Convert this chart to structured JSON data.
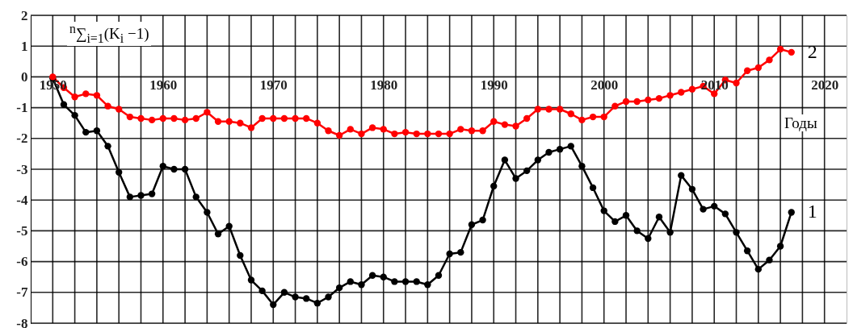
{
  "chart_data": {
    "type": "line",
    "ylabel": "$^{n}$∑$_{i=1}$(K$_{i}$ −1)",
    "xlabel": "Годы",
    "xlim": [
      1948,
      2022
    ],
    "ylim": [
      -8,
      2
    ],
    "xticks": [
      1950,
      {
        "value": 1952,
        "label": null
      },
      {
        "value": 1954,
        "label": null
      },
      {
        "value": 1956,
        "label": null
      },
      {
        "value": 1958,
        "label": null
      },
      1960,
      {
        "value": 1962,
        "label": null
      },
      {
        "value": 1964,
        "label": null
      },
      {
        "value": 1966,
        "label": null
      },
      {
        "value": 1968,
        "label": null
      },
      1970,
      {
        "value": 1972,
        "label": null
      },
      {
        "value": 1974,
        "label": null
      },
      {
        "value": 1976,
        "label": null
      },
      {
        "value": 1978,
        "label": null
      },
      1980,
      {
        "value": 1982,
        "label": null
      },
      {
        "value": 1984,
        "label": null
      },
      {
        "value": 1986,
        "label": null
      },
      {
        "value": 1988,
        "label": null
      },
      1990,
      {
        "value": 1992,
        "label": null
      },
      {
        "value": 1994,
        "label": null
      },
      {
        "value": 1996,
        "label": null
      },
      {
        "value": 1998,
        "label": null
      },
      2000,
      {
        "value": 2002,
        "label": null
      },
      {
        "value": 2004,
        "label": null
      },
      {
        "value": 2006,
        "label": null
      },
      {
        "value": 2008,
        "label": null
      },
      2010,
      {
        "value": 2012,
        "label": null
      },
      {
        "value": 2014,
        "label": null
      },
      {
        "value": 2016,
        "label": null
      },
      {
        "value": 2018,
        "label": null
      },
      2020
    ],
    "yticks": [
      -8,
      -7,
      -6,
      -5,
      -4,
      -3,
      -2,
      -1,
      0,
      1,
      2
    ],
    "grid": true,
    "marker": "circle",
    "line_style": "solid",
    "x": [
      1950,
      1951,
      1952,
      1953,
      1954,
      1955,
      1956,
      1957,
      1958,
      1959,
      1960,
      1961,
      1962,
      1963,
      1964,
      1965,
      1966,
      1967,
      1968,
      1969,
      1970,
      1971,
      1972,
      1973,
      1974,
      1975,
      1976,
      1977,
      1978,
      1979,
      1980,
      1981,
      1982,
      1983,
      1984,
      1985,
      1986,
      1987,
      1988,
      1989,
      1990,
      1991,
      1992,
      1993,
      1994,
      1995,
      1996,
      1997,
      1998,
      1999,
      2000,
      2001,
      2002,
      2003,
      2004,
      2005,
      2006,
      2007,
      2008,
      2009,
      2010,
      2011,
      2012,
      2013,
      2014,
      2015,
      2016,
      2017
    ],
    "series": [
      {
        "name": "1",
        "color": "#000000",
        "values": [
          -0.05,
          -0.9,
          -1.25,
          -1.8,
          -1.75,
          -2.25,
          -3.1,
          -3.9,
          -3.85,
          -3.8,
          -2.9,
          -3.0,
          -3.0,
          -3.9,
          -4.4,
          -5.1,
          -4.85,
          -5.8,
          -6.6,
          -6.95,
          -7.4,
          -7.0,
          -7.15,
          -7.2,
          -7.35,
          -7.15,
          -6.85,
          -6.65,
          -6.75,
          -6.45,
          -6.5,
          -6.65,
          -6.65,
          -6.65,
          -6.75,
          -6.45,
          -5.75,
          -5.7,
          -4.8,
          -4.65,
          -3.55,
          -2.7,
          -3.3,
          -3.05,
          -2.7,
          -2.45,
          -2.35,
          -2.25,
          -2.9,
          -3.6,
          -4.35,
          -4.7,
          -4.5,
          -5.0,
          -5.25,
          -4.55,
          -5.05,
          -3.2,
          -3.65,
          -4.3,
          -4.2,
          -4.45,
          -5.05,
          -5.65,
          -6.25,
          -5.95,
          -5.5,
          -4.4
        ]
      },
      {
        "name": "2",
        "color": "#ff0000",
        "values": [
          0.0,
          -0.35,
          -0.65,
          -0.55,
          -0.6,
          -0.95,
          -1.05,
          -1.3,
          -1.35,
          -1.4,
          -1.35,
          -1.35,
          -1.4,
          -1.35,
          -1.15,
          -1.45,
          -1.45,
          -1.5,
          -1.65,
          -1.35,
          -1.35,
          -1.35,
          -1.35,
          -1.35,
          -1.5,
          -1.75,
          -1.9,
          -1.7,
          -1.85,
          -1.65,
          -1.7,
          -1.85,
          -1.8,
          -1.85,
          -1.85,
          -1.85,
          -1.85,
          -1.7,
          -1.75,
          -1.75,
          -1.45,
          -1.55,
          -1.6,
          -1.35,
          -1.05,
          -1.05,
          -1.05,
          -1.2,
          -1.4,
          -1.3,
          -1.3,
          -0.95,
          -0.8,
          -0.8,
          -0.75,
          -0.7,
          -0.6,
          -0.5,
          -0.4,
          -0.3,
          -0.55,
          -0.1,
          -0.2,
          0.2,
          0.3,
          0.55,
          0.9,
          0.8
        ]
      }
    ]
  }
}
